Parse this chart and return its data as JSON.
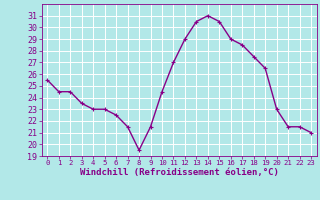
{
  "x": [
    0,
    1,
    2,
    3,
    4,
    5,
    6,
    7,
    8,
    9,
    10,
    11,
    12,
    13,
    14,
    15,
    16,
    17,
    18,
    19,
    20,
    21,
    22,
    23
  ],
  "y": [
    25.5,
    24.5,
    24.5,
    23.5,
    23.0,
    23.0,
    22.5,
    21.5,
    19.5,
    21.5,
    24.5,
    27.0,
    29.0,
    30.5,
    31.0,
    30.5,
    29.0,
    28.5,
    27.5,
    26.5,
    23.0,
    21.5,
    21.5,
    21.0
  ],
  "line_color": "#880088",
  "marker": "P",
  "marker_size": 2.5,
  "bg_color": "#b2e8e8",
  "grid_color": "#ffffff",
  "xlabel": "Windchill (Refroidissement éolien,°C)",
  "xlabel_color": "#880088",
  "tick_color": "#880088",
  "ylim": [
    19,
    32
  ],
  "xlim": [
    -0.5,
    23.5
  ],
  "yticks": [
    19,
    20,
    21,
    22,
    23,
    24,
    25,
    26,
    27,
    28,
    29,
    30,
    31
  ],
  "xticks": [
    0,
    1,
    2,
    3,
    4,
    5,
    6,
    7,
    8,
    9,
    10,
    11,
    12,
    13,
    14,
    15,
    16,
    17,
    18,
    19,
    20,
    21,
    22,
    23
  ],
  "linewidth": 1.0,
  "ytick_fontsize": 6,
  "xtick_fontsize": 5.2,
  "xlabel_fontsize": 6.5
}
